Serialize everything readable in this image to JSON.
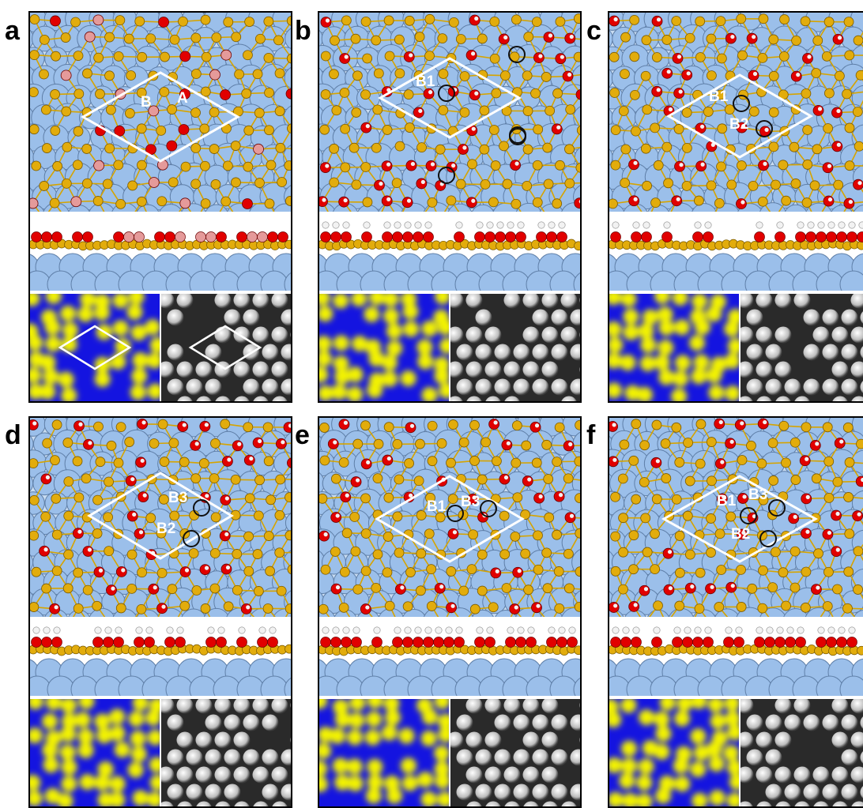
{
  "colors": {
    "substrate": "#9bbfea",
    "substrate_edge": "#5f7fa8",
    "bond": "#d6a400",
    "gold_atom": "#e2ac0c",
    "oxygen": "#e10000",
    "pink_atom": "#e59a9a",
    "hydrogen": "#f2f2f2",
    "sim_blue": "#1414e0",
    "sim_yellow": "#f3f300",
    "cell_outline": "#ffffff",
    "site_marker": "#101010"
  },
  "panels": [
    {
      "id": "a",
      "letter": "a",
      "site_labels": [
        {
          "text": "B"
        },
        {
          "text": "A"
        }
      ],
      "markers": 0,
      "hydroxylated": false
    },
    {
      "id": "b",
      "letter": "b",
      "site_labels": [
        {
          "text": "B1"
        }
      ],
      "markers": 5,
      "hydroxylated": true
    },
    {
      "id": "c",
      "letter": "c",
      "site_labels": [
        {
          "text": "B1"
        },
        {
          "text": "B2"
        }
      ],
      "markers": 2,
      "hydroxylated": true
    },
    {
      "id": "d",
      "letter": "d",
      "site_labels": [
        {
          "text": "B3"
        },
        {
          "text": "B2"
        }
      ],
      "markers": 2,
      "hydroxylated": true
    },
    {
      "id": "e",
      "letter": "e",
      "site_labels": [
        {
          "text": "B1"
        },
        {
          "text": "B3"
        }
      ],
      "markers": 2,
      "hydroxylated": true
    },
    {
      "id": "f",
      "letter": "f",
      "site_labels": [
        {
          "text": "B1"
        },
        {
          "text": "B3"
        },
        {
          "text": "B2"
        }
      ],
      "markers": 3,
      "hydroxylated": true
    }
  ]
}
